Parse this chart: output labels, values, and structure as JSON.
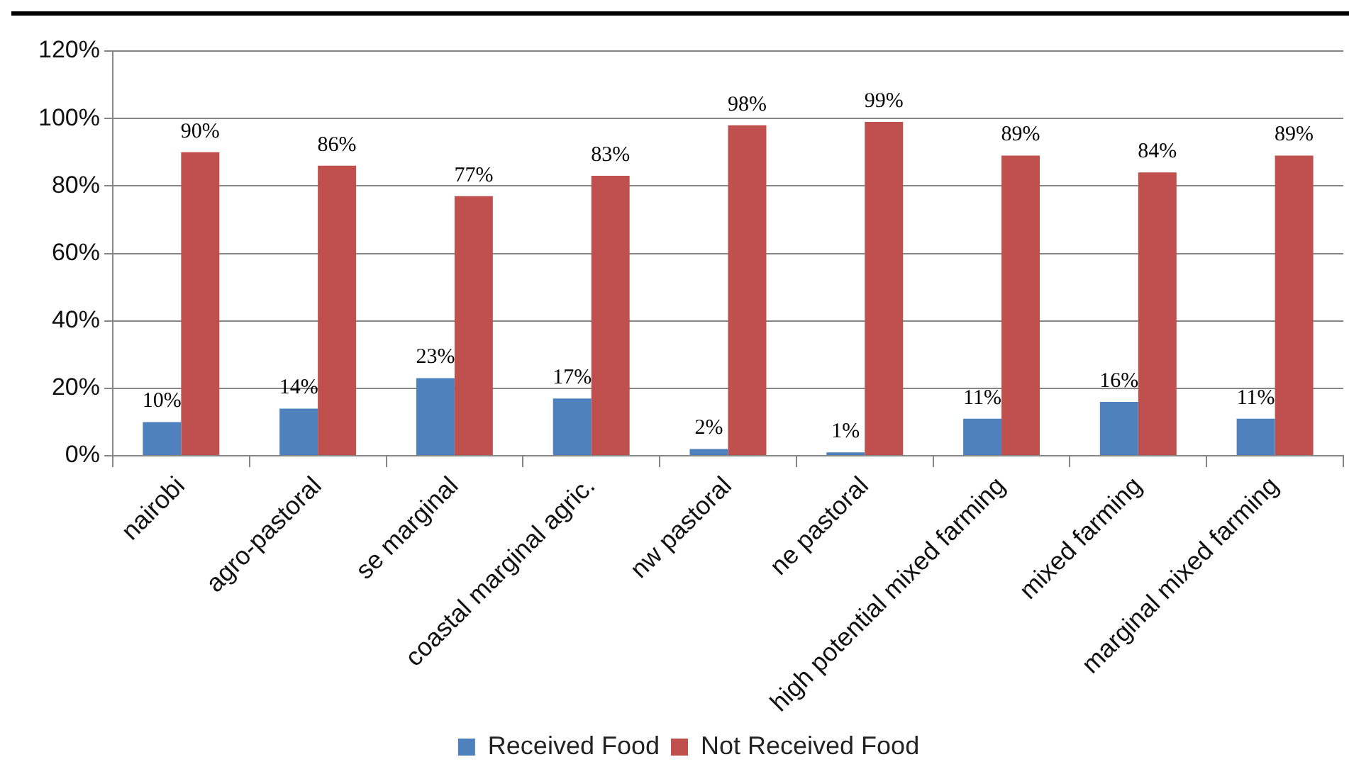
{
  "chart_data": {
    "type": "bar",
    "categories": [
      "nairobi",
      "agro-pastoral",
      "se marginal",
      "coastal marginal agric.",
      "nw pastoral",
      "ne pastoral",
      "high potential mixed farming",
      "mixed farming",
      "marginal mixed farming"
    ],
    "series": [
      {
        "name": "Received Food",
        "color": "#4f81bd",
        "values": [
          10,
          14,
          23,
          17,
          2,
          1,
          11,
          16,
          11
        ],
        "value_labels": [
          "10%",
          "14%",
          "23%",
          "17%",
          "2%",
          "1%",
          "11%",
          "16%",
          "11%"
        ]
      },
      {
        "name": "Not Received Food",
        "color": "#c0504d",
        "values": [
          90,
          86,
          77,
          83,
          98,
          99,
          89,
          84,
          89
        ],
        "value_labels": [
          "90%",
          "86%",
          "77%",
          "83%",
          "98%",
          "99%",
          "89%",
          "84%",
          "89%"
        ]
      }
    ],
    "ylim": [
      0,
      120
    ],
    "yticks": [
      {
        "value": 0,
        "label": "0%"
      },
      {
        "value": 20,
        "label": "20%"
      },
      {
        "value": 40,
        "label": "40%"
      },
      {
        "value": 60,
        "label": "60%"
      },
      {
        "value": 80,
        "label": "80%"
      },
      {
        "value": 100,
        "label": "100%"
      },
      {
        "value": 120,
        "label": "120%"
      }
    ],
    "grid": "y",
    "legend": "bottom"
  }
}
